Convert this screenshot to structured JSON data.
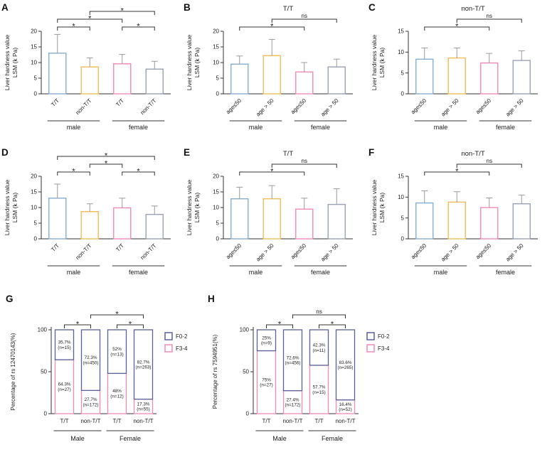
{
  "chart_data": [
    {
      "panel": "A",
      "type": "bar",
      "title": "",
      "ylabel_lines": [
        "Liver hardness value",
        "LSM (k Pa)"
      ],
      "categories": [
        "T/T",
        "non-T/T",
        "T/T",
        "non-T/T"
      ],
      "groups": [
        {
          "label": "male",
          "from": 0,
          "to": 1
        },
        {
          "label": "female",
          "from": 2,
          "to": 3
        }
      ],
      "values": [
        13,
        8.6,
        9.6,
        7.9
      ],
      "errors": [
        6,
        2.9,
        3,
        2.5
      ],
      "ylim": [
        0,
        20
      ],
      "yticks": [
        0,
        5,
        10,
        15,
        20
      ],
      "bar_colors": [
        "#85aed2",
        "#f2bd57",
        "#f08ab8",
        "#9aa1b6"
      ],
      "error_color": "#9b9b9b",
      "brackets": [
        {
          "from": 0,
          "to": 1,
          "label": "*",
          "level": 1
        },
        {
          "from": 2,
          "to": 3,
          "label": "*",
          "level": 1
        },
        {
          "from": 0,
          "to": 2,
          "label": "*",
          "level": 2
        },
        {
          "from": 1,
          "to": 3,
          "label": "*",
          "level": 3
        }
      ]
    },
    {
      "panel": "B",
      "type": "bar",
      "title": "T/T",
      "ylabel_lines": [
        "Liver hardness value",
        "LSM (k Pa)"
      ],
      "categories": [
        "age≤50",
        "age > 50",
        "age≤50",
        "age > 50"
      ],
      "groups": [
        {
          "label": "male",
          "from": 0,
          "to": 1
        },
        {
          "label": "female",
          "from": 2,
          "to": 3
        }
      ],
      "values": [
        9.5,
        12.2,
        7.0,
        8.6
      ],
      "errors": [
        2.6,
        5.2,
        3.0,
        2.5
      ],
      "ylim": [
        0,
        20
      ],
      "yticks": [
        0,
        5,
        10,
        15,
        20
      ],
      "bar_colors": [
        "#85aed2",
        "#f2bd57",
        "#f08ab8",
        "#9aa1b6"
      ],
      "error_color": "#9b9b9b",
      "brackets": [
        {
          "from": 0,
          "to": 2,
          "label": "*",
          "level": 1
        },
        {
          "from": 1,
          "to": 3,
          "label": "ns",
          "level": 2
        }
      ]
    },
    {
      "panel": "C",
      "type": "bar",
      "title": "non-T/T",
      "ylabel_lines": [
        "Liver hardness value",
        "LSM (k Pa)"
      ],
      "categories": [
        "age≤50",
        "age > 50",
        "age≤50",
        "age > 50"
      ],
      "groups": [
        {
          "label": "male",
          "from": 0,
          "to": 1
        },
        {
          "label": "female",
          "from": 2,
          "to": 3
        }
      ],
      "values": [
        8.3,
        8.6,
        7.4,
        8.0
      ],
      "errors": [
        2.7,
        2.4,
        2.3,
        2.3
      ],
      "ylim": [
        0,
        15
      ],
      "yticks": [
        0,
        5,
        10,
        15
      ],
      "bar_colors": [
        "#85aed2",
        "#f2bd57",
        "#f08ab8",
        "#9aa1b6"
      ],
      "error_color": "#9b9b9b",
      "brackets": [
        {
          "from": 0,
          "to": 2,
          "label": "*",
          "level": 1
        },
        {
          "from": 1,
          "to": 3,
          "label": "ns",
          "level": 2
        }
      ]
    },
    {
      "panel": "D",
      "type": "bar",
      "title": "",
      "ylabel_lines": [
        "Liver hardness value",
        "LSM (k Pa)"
      ],
      "categories": [
        "T/T",
        "non-T/T",
        "T/T",
        "non-T/T"
      ],
      "groups": [
        {
          "label": "male",
          "from": 0,
          "to": 1
        },
        {
          "label": "female",
          "from": 2,
          "to": 3
        }
      ],
      "values": [
        13,
        8.7,
        9.9,
        7.8
      ],
      "errors": [
        4.5,
        2.5,
        3.1,
        2.7
      ],
      "ylim": [
        0,
        20
      ],
      "yticks": [
        0,
        5,
        10,
        15,
        20
      ],
      "bar_colors": [
        "#85aed2",
        "#f2bd57",
        "#f08ab8",
        "#9aa1b6"
      ],
      "error_color": "#9b9b9b",
      "brackets": [
        {
          "from": 0,
          "to": 1,
          "label": "*",
          "level": 1
        },
        {
          "from": 2,
          "to": 3,
          "label": "*",
          "level": 1
        },
        {
          "from": 1,
          "to": 2,
          "label": "*",
          "level": 2
        },
        {
          "from": 0,
          "to": 3,
          "label": "*",
          "level": 3
        }
      ]
    },
    {
      "panel": "E",
      "type": "bar",
      "title": "T/T",
      "ylabel_lines": [
        "Liver hardness value",
        "LSM (k Pa)"
      ],
      "categories": [
        "age≤50",
        "age > 50",
        "age≤50",
        "age > 50"
      ],
      "groups": [
        {
          "label": "male",
          "from": 0,
          "to": 1
        },
        {
          "label": "female",
          "from": 2,
          "to": 3
        }
      ],
      "values": [
        12.8,
        12.8,
        9.5,
        11.0
      ],
      "errors": [
        3.7,
        4.2,
        3.5,
        5.0
      ],
      "ylim": [
        0,
        20
      ],
      "yticks": [
        0,
        5,
        10,
        15,
        20
      ],
      "bar_colors": [
        "#85aed2",
        "#f2bd57",
        "#f08ab8",
        "#9aa1b6"
      ],
      "error_color": "#9b9b9b",
      "brackets": [
        {
          "from": 0,
          "to": 2,
          "label": "*",
          "level": 1
        },
        {
          "from": 1,
          "to": 3,
          "label": "ns",
          "level": 2
        }
      ]
    },
    {
      "panel": "F",
      "type": "bar",
      "title": "non-T/T",
      "ylabel_lines": [
        "Liver hardness value",
        "LSM (k Pa)"
      ],
      "categories": [
        "age≤50",
        "age > 50",
        "age≤50",
        "age > 50"
      ],
      "groups": [
        {
          "label": "male",
          "from": 0,
          "to": 1
        },
        {
          "label": "female",
          "from": 2,
          "to": 3
        }
      ],
      "values": [
        8.6,
        8.8,
        7.5,
        8.4
      ],
      "errors": [
        2.9,
        2.5,
        2.3,
        2.1
      ],
      "ylim": [
        0,
        15
      ],
      "yticks": [
        0,
        5,
        10,
        15
      ],
      "bar_colors": [
        "#85aed2",
        "#f2bd57",
        "#f08ab8",
        "#9aa1b6"
      ],
      "error_color": "#9b9b9b",
      "brackets": [
        {
          "from": 0,
          "to": 2,
          "label": "*",
          "level": 1
        },
        {
          "from": 1,
          "to": 3,
          "label": "ns",
          "level": 2
        }
      ]
    },
    {
      "panel": "G",
      "type": "stacked-bar",
      "ylabel": "Percentage of rs 12470143(%)",
      "categories": [
        "T/T",
        "non-T/T",
        "T/T",
        "non-T/T"
      ],
      "groups": [
        {
          "label": "Male",
          "from": 0,
          "to": 1
        },
        {
          "label": "Female",
          "from": 2,
          "to": 3
        }
      ],
      "yticks": [
        0,
        50,
        100
      ],
      "series": [
        {
          "name": "F3-4",
          "color": "#f08ab8",
          "values": [
            64.3,
            27.7,
            48,
            17.3
          ],
          "counts": [
            "n=27",
            "n=172",
            "n=12",
            "n=55"
          ]
        },
        {
          "name": "F0-2",
          "color": "#5a5f9f",
          "values": [
            35.7,
            72.3,
            52,
            82.7
          ],
          "counts": [
            "n=15",
            "n=450",
            "n=13",
            "n=263"
          ]
        }
      ],
      "legend_order": [
        "F0-2",
        "F3-4"
      ],
      "brackets": [
        {
          "from": 0,
          "to": 1,
          "label": "*",
          "level": 1
        },
        {
          "from": 2,
          "to": 3,
          "label": "*",
          "level": 1
        },
        {
          "from": 1,
          "to": 3,
          "label": "*",
          "level": 2
        }
      ]
    },
    {
      "panel": "H",
      "type": "stacked-bar",
      "ylabel": "Percentage of rs 7594951(%)",
      "categories": [
        "T/T",
        "non-T/T",
        "T/T",
        "non-T/T"
      ],
      "groups": [
        {
          "label": "Male",
          "from": 0,
          "to": 1
        },
        {
          "label": "Female",
          "from": 2,
          "to": 3
        }
      ],
      "yticks": [
        0,
        50,
        100
      ],
      "series": [
        {
          "name": "F3-4",
          "color": "#f08ab8",
          "values": [
            75,
            27.4,
            57.7,
            16.4
          ],
          "counts": [
            "n=27",
            "n=172",
            "n=15",
            "n=52"
          ]
        },
        {
          "name": "F0-2",
          "color": "#5a5f9f",
          "values": [
            25,
            72.6,
            42.3,
            83.6
          ],
          "counts": [
            "n=9",
            "n=456",
            "n=11",
            "n=265"
          ]
        }
      ],
      "legend_order": [
        "F0-2",
        "F3-4"
      ],
      "brackets": [
        {
          "from": 0,
          "to": 1,
          "label": "*",
          "level": 1
        },
        {
          "from": 2,
          "to": 3,
          "label": "*",
          "level": 1
        },
        {
          "from": 1,
          "to": 3,
          "label": "ns",
          "level": 2
        }
      ]
    }
  ]
}
